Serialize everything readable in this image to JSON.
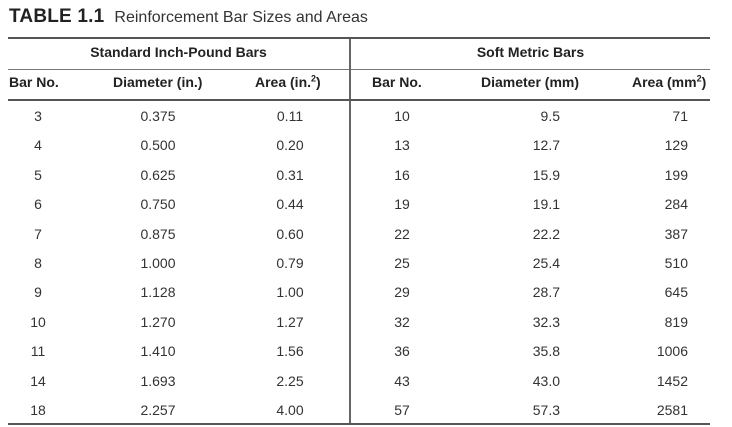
{
  "caption": {
    "label": "TABLE 1.1",
    "title": "Reinforcement Bar Sizes and Areas"
  },
  "groups": {
    "inch_pound": "Standard Inch-Pound Bars",
    "soft_metric": "Soft Metric Bars"
  },
  "columns": {
    "bar_no": "Bar No.",
    "diameter_in": "Diameter (in.)",
    "area_in_prefix": "Area (in.",
    "area_in_sup": "2",
    "area_in_suffix": ")",
    "metric_bar_no": "Bar No.",
    "diameter_mm": "Diameter (mm)",
    "area_mm_prefix": "Area (mm",
    "area_mm_sup": "2",
    "area_mm_suffix": ")"
  },
  "rows": [
    {
      "bar": "3",
      "dia": "0.375",
      "area": "0.11",
      "mbar": "10",
      "mdia": "9.5",
      "marea": "71"
    },
    {
      "bar": "4",
      "dia": "0.500",
      "area": "0.20",
      "mbar": "13",
      "mdia": "12.7",
      "marea": "129"
    },
    {
      "bar": "5",
      "dia": "0.625",
      "area": "0.31",
      "mbar": "16",
      "mdia": "15.9",
      "marea": "199"
    },
    {
      "bar": "6",
      "dia": "0.750",
      "area": "0.44",
      "mbar": "19",
      "mdia": "19.1",
      "marea": "284"
    },
    {
      "bar": "7",
      "dia": "0.875",
      "area": "0.60",
      "mbar": "22",
      "mdia": "22.2",
      "marea": "387"
    },
    {
      "bar": "8",
      "dia": "1.000",
      "area": "0.79",
      "mbar": "25",
      "mdia": "25.4",
      "marea": "510"
    },
    {
      "bar": "9",
      "dia": "1.128",
      "area": "1.00",
      "mbar": "29",
      "mdia": "28.7",
      "marea": "645"
    },
    {
      "bar": "10",
      "dia": "1.270",
      "area": "1.27",
      "mbar": "32",
      "mdia": "32.3",
      "marea": "819"
    },
    {
      "bar": "11",
      "dia": "1.410",
      "area": "1.56",
      "mbar": "36",
      "mdia": "35.8",
      "marea": "1006"
    },
    {
      "bar": "14",
      "dia": "1.693",
      "area": "2.25",
      "mbar": "43",
      "mdia": "43.0",
      "marea": "1452"
    },
    {
      "bar": "18",
      "dia": "2.257",
      "area": "4.00",
      "mbar": "57",
      "mdia": "57.3",
      "marea": "2581"
    }
  ]
}
